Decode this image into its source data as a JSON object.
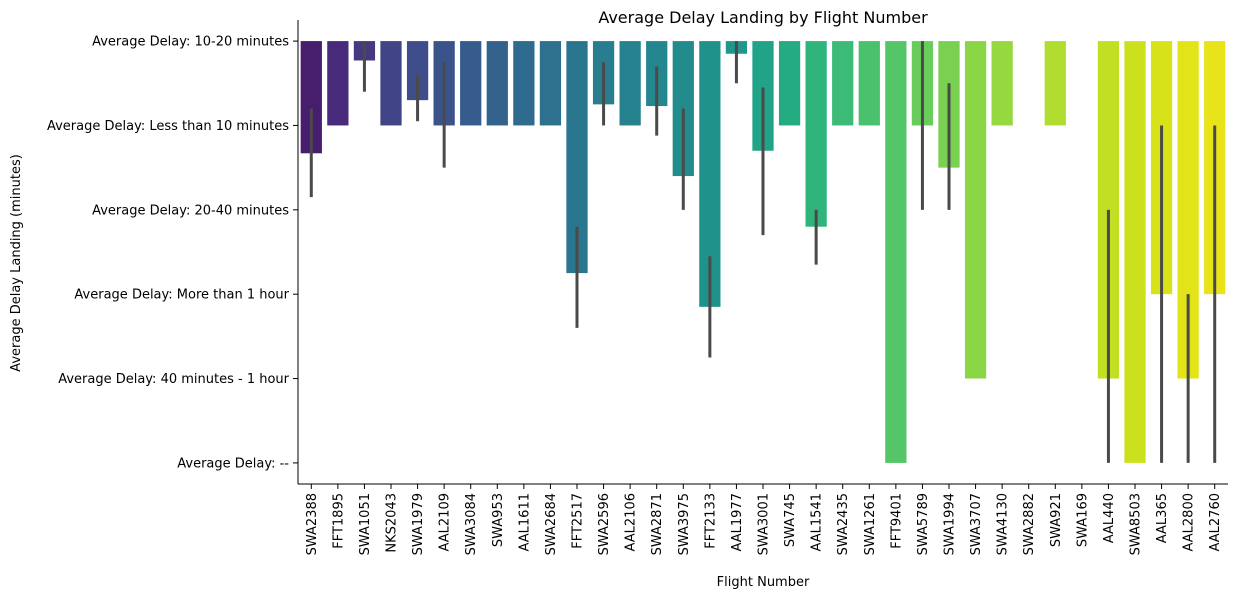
{
  "chart_data": {
    "type": "bar",
    "title": "Average Delay Landing by Flight Number",
    "xlabel": "Flight Number",
    "ylabel": "Average Delay Landing (minutes)",
    "y_categories": [
      "Average Delay: 10-20 minutes",
      "Average Delay: Less than 10 minutes",
      "Average Delay: 20-40 minutes",
      "Average Delay: More than 1 hour",
      "Average Delay: 40 minutes - 1 hour",
      "Average Delay: --"
    ],
    "ylim": [
      -0.25,
      5.25
    ],
    "y_inverted": true,
    "categories": [
      "SWA2388",
      "FFT1895",
      "SWA1051",
      "NKS2043",
      "SWA1979",
      "AAL2109",
      "SWA3084",
      "SWA953",
      "AAL1611",
      "SWA2684",
      "FFT2517",
      "SWA2596",
      "AAL2106",
      "SWA2871",
      "SWA3975",
      "FFT2133",
      "AAL1977",
      "SWA3001",
      "SWA745",
      "AAL1541",
      "SWA2435",
      "SWA1261",
      "FFT9401",
      "SWA5789",
      "SWA1994",
      "SWA3707",
      "SWA4130",
      "SWA2882",
      "SWA921",
      "SWA169",
      "AAL440",
      "SWA8503",
      "AAL365",
      "AAL2800",
      "AAL2760"
    ],
    "values": [
      1.33,
      1.0,
      0.23,
      1.0,
      0.7,
      1.0,
      1.0,
      1.0,
      1.0,
      1.0,
      2.75,
      0.75,
      1.0,
      0.77,
      1.6,
      3.15,
      0.15,
      1.3,
      1.0,
      2.2,
      1.0,
      1.0,
      5.0,
      1.0,
      1.5,
      4.0,
      1.0,
      0.0,
      1.0,
      0.0,
      4.0,
      5.0,
      3.0,
      4.0,
      3.0
    ],
    "error_low": [
      0.8,
      null,
      0.0,
      null,
      0.4,
      0.25,
      null,
      null,
      null,
      null,
      2.2,
      0.25,
      null,
      0.3,
      0.8,
      2.55,
      0.0,
      0.55,
      null,
      2.0,
      null,
      null,
      null,
      0.0,
      0.5,
      null,
      null,
      null,
      null,
      null,
      2.0,
      null,
      1.0,
      3.0,
      1.0
    ],
    "error_high": [
      1.85,
      null,
      0.6,
      null,
      0.95,
      1.5,
      null,
      null,
      null,
      null,
      3.4,
      1.0,
      null,
      1.12,
      2.0,
      3.75,
      0.5,
      2.3,
      null,
      2.65,
      null,
      null,
      null,
      2.0,
      2.0,
      null,
      null,
      null,
      null,
      null,
      5.0,
      null,
      5.0,
      5.0,
      5.0
    ],
    "colors": [
      "#471d6d",
      "#472a7a",
      "#45397f",
      "#414587",
      "#3f4d8a",
      "#3a538b",
      "#365c8d",
      "#33638d",
      "#2f6b8e",
      "#2d718e",
      "#2a768e",
      "#287d8e",
      "#26828e",
      "#24868e",
      "#228c8d",
      "#1f928c",
      "#1f988b",
      "#20a386",
      "#25ab82",
      "#2fb47c",
      "#3bbb75",
      "#49c16d",
      "#55c667",
      "#68cd5b",
      "#7ad151",
      "#8bd646",
      "#96d83f",
      "#a5db36",
      "#b0dd2f",
      "#bddf26",
      "#c2df23",
      "#cbe11e",
      "#d7e219",
      "#e2e418",
      "#e8e419"
    ],
    "grid": false,
    "legend": "none"
  }
}
